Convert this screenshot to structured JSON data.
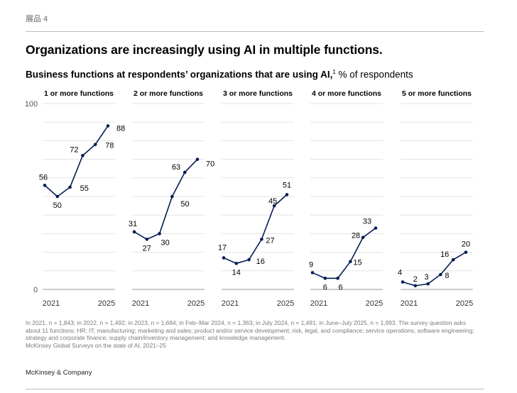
{
  "exhibit_label": "展品 4",
  "title": "Organizations are increasingly using AI in multiple functions.",
  "subtitle": {
    "bold": "Business functions at respondents’ organizations that are using AI,",
    "footnote_marker": "1",
    "unit": " % of respondents"
  },
  "chart_data": {
    "type": "line",
    "ylim": [
      0,
      100
    ],
    "y_ticks": [
      "0",
      "100"
    ],
    "x_tick_labels": [
      "2021",
      "2025"
    ],
    "x": [
      "2021",
      "2022",
      "2023",
      "Feb–Mar 2024",
      "July 2024",
      "June–July 2025"
    ],
    "line_color": "#051c55",
    "panels": [
      {
        "title": "1 or more functions",
        "values": [
          56,
          50,
          55,
          72,
          78,
          88
        ],
        "labels": [
          "56",
          "50",
          "55",
          "72",
          "78",
          "88"
        ]
      },
      {
        "title": "2 or more functions",
        "values": [
          31,
          27,
          30,
          50,
          63,
          70
        ],
        "labels": [
          "31",
          "27",
          "30",
          "50",
          "63",
          "70"
        ]
      },
      {
        "title": "3 or more functions",
        "values": [
          17,
          14,
          16,
          27,
          45,
          51
        ],
        "labels": [
          "17",
          "14",
          "16",
          "27",
          "45",
          "51"
        ]
      },
      {
        "title": "4 or more functions",
        "values": [
          9,
          6,
          6,
          15,
          28,
          33
        ],
        "labels": [
          "9",
          "6",
          "6",
          "15",
          "28",
          "33"
        ]
      },
      {
        "title": "5 or more functions",
        "values": [
          4,
          2,
          3,
          8,
          16,
          20
        ],
        "labels": [
          "4",
          "2",
          "3",
          "8",
          "16",
          "20"
        ]
      }
    ]
  },
  "footnote": "In 2021, n = 1,843; in 2022, n = 1,492; in 2023, n = 1,684; in Feb–Mar 2024, n = 1,363; in July 2024, n = 1,491; in June–July 2025, n = 1,993. The survey question asks about 11 functions: HR; IT; manufacturing; marketing and sales; product and/or service development; risk, legal, and compliance; service operations; software engineering; strategy and corporate finance; supply chain/inventory management; and knowledge management.",
  "source": "McKinsey Global Surveys on the state of AI, 2021–25",
  "brand": "McKinsey & Company"
}
